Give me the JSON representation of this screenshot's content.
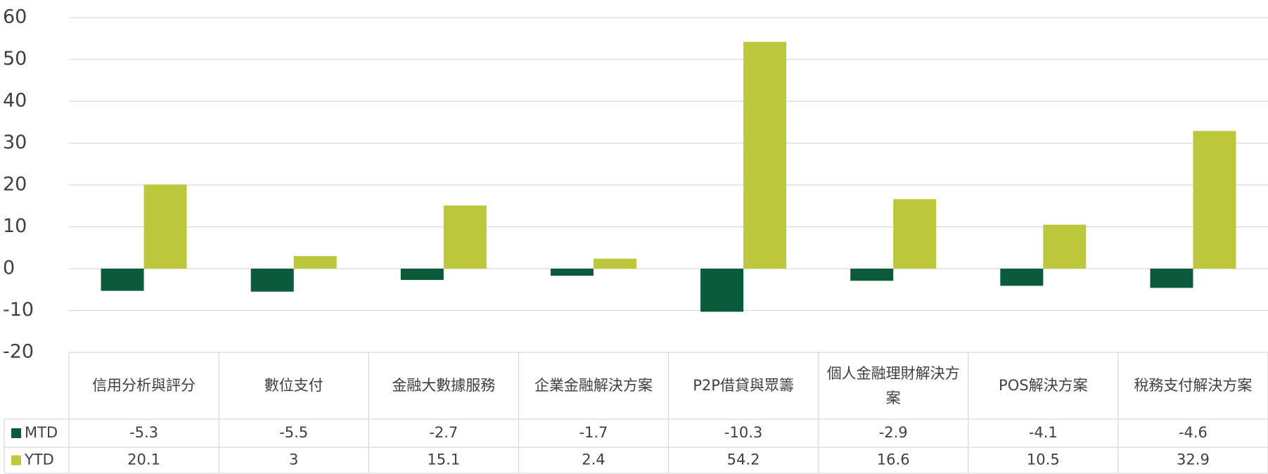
{
  "chart_data": {
    "type": "bar",
    "categories": [
      "信用分析與評分",
      "數位支付",
      "金融大數據服務",
      "企業金融解決方案",
      "P2P借貸與眾籌",
      "個人金融理財解決方案",
      "POS解決方案",
      "稅務支付解決方案"
    ],
    "series": [
      {
        "name": "MTD",
        "color": "#0b5a3c",
        "values": [
          -5.3,
          -5.5,
          -2.7,
          -1.7,
          -10.3,
          -2.9,
          -4.1,
          -4.6
        ]
      },
      {
        "name": "YTD",
        "color": "#bcc73b",
        "values": [
          20.1,
          3,
          15.1,
          2.4,
          54.2,
          16.6,
          10.5,
          32.9
        ]
      }
    ],
    "ylim": [
      -20,
      60
    ],
    "yticks": [
      -20,
      -10,
      0,
      10,
      20,
      30,
      40,
      50,
      60
    ],
    "grid": true
  }
}
